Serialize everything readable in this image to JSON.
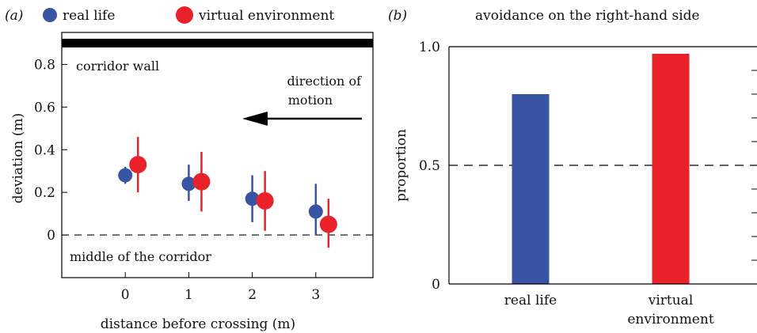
{
  "chart_data": [
    {
      "panel_label": "(a)",
      "type": "scatter",
      "xlabel": "distance before crossing (m)",
      "ylabel": "deviation (m)",
      "xlim": [
        -1,
        3.9
      ],
      "ylim": [
        -0.2,
        0.95
      ],
      "x_ticks": [
        "0",
        "1",
        "2",
        "3"
      ],
      "y_ticks": [
        "0",
        "0.2",
        "0.4",
        "0.6",
        "0.8"
      ],
      "legend_position": "top",
      "series": [
        {
          "name": "real life",
          "color": "#3a54a4",
          "points": [
            {
              "x": 0,
              "y": 0.28,
              "err_low": 0.24,
              "err_high": 0.32
            },
            {
              "x": 1,
              "y": 0.24,
              "err_low": 0.16,
              "err_high": 0.33
            },
            {
              "x": 2,
              "y": 0.17,
              "err_low": 0.06,
              "err_high": 0.28
            },
            {
              "x": 3,
              "y": 0.11,
              "err_low": 0.0,
              "err_high": 0.24
            }
          ]
        },
        {
          "name": "virtual environment",
          "color": "#e8212a",
          "points": [
            {
              "x": 0.2,
              "y": 0.33,
              "err_low": 0.2,
              "err_high": 0.46
            },
            {
              "x": 1.2,
              "y": 0.25,
              "err_low": 0.11,
              "err_high": 0.39
            },
            {
              "x": 2.2,
              "y": 0.16,
              "err_low": 0.02,
              "err_high": 0.3
            },
            {
              "x": 3.2,
              "y": 0.05,
              "err_low": -0.06,
              "err_high": 0.17
            }
          ]
        }
      ],
      "reference_lines": [
        {
          "y": 0.9,
          "style": "thick-solid",
          "label": "corridor wall"
        },
        {
          "y": 0,
          "style": "dashed",
          "label": "middle of the corridor"
        }
      ],
      "annotation": {
        "text_line1": "direction of",
        "text_line2": "motion",
        "arrow": "left"
      }
    },
    {
      "panel_label": "(b)",
      "type": "bar",
      "title": "avoidance on the right-hand side",
      "ylabel": "proportion",
      "ylim": [
        0,
        1.0
      ],
      "y_ticks": [
        "0",
        "0.5",
        "1.0"
      ],
      "categories": [
        "real life",
        "virtual environment"
      ],
      "category_labels": [
        [
          "real life"
        ],
        [
          "virtual",
          "environment"
        ]
      ],
      "values": [
        0.8,
        0.97
      ],
      "colors": [
        "#3a54a4",
        "#e8212a"
      ],
      "reference_lines": [
        {
          "y": 0.5,
          "style": "dashed"
        }
      ]
    }
  ]
}
